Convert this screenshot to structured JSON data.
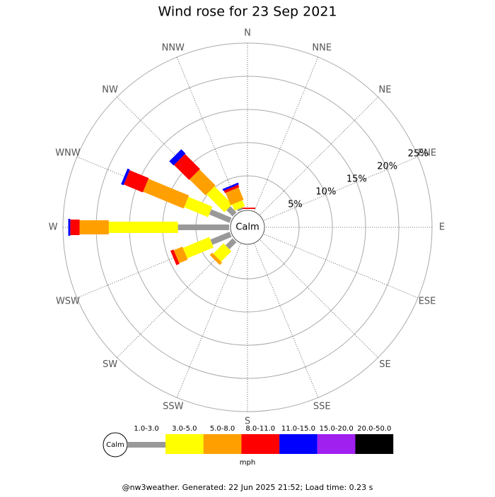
{
  "chart_data": {
    "type": "windrose",
    "title": "Wind rose for 23 Sep 2021",
    "categories": [
      "N",
      "NNE",
      "NE",
      "ENE",
      "E",
      "ESE",
      "SE",
      "SSE",
      "S",
      "SSW",
      "SW",
      "WSW",
      "W",
      "WNW",
      "NW",
      "NNW"
    ],
    "center_label": "Calm",
    "rlim": [
      0,
      25
    ],
    "rticks": [
      {
        "value": 5,
        "label": "5%"
      },
      {
        "value": 10,
        "label": "10%"
      },
      {
        "value": 15,
        "label": "15%"
      },
      {
        "value": 20,
        "label": "20%"
      },
      {
        "value": 25,
        "label": "25%"
      }
    ],
    "series": [
      {
        "name": "1.0-3.0",
        "color": "#999999",
        "values": [
          0,
          0,
          0,
          0,
          0,
          0,
          0,
          0,
          0,
          0,
          1.5,
          3.1,
          7.7,
          3.3,
          1.3,
          0.3
        ]
      },
      {
        "name": "3.0-5.0",
        "color": "#ffff00",
        "values": [
          0,
          0,
          0,
          0,
          0,
          0,
          0,
          0,
          0,
          0,
          2.2,
          4.3,
          10.4,
          3.9,
          3.8,
          1.0
        ]
      },
      {
        "name": "5.0-8.0",
        "color": "#ffa000",
        "values": [
          0,
          0,
          0,
          0,
          0,
          0,
          0,
          0,
          0,
          0,
          0.5,
          1.4,
          4.4,
          6.6,
          3.4,
          2.0
        ]
      },
      {
        "name": "8.0-11.0",
        "color": "#ff0000",
        "values": [
          0.2,
          0,
          0,
          0,
          0,
          0,
          0,
          0,
          0,
          0,
          0,
          0.5,
          1.4,
          3.1,
          3.2,
          0.4
        ]
      },
      {
        "name": "11.0-15.0",
        "color": "#0000ff",
        "values": [
          0,
          0,
          0,
          0,
          0,
          0,
          0,
          0,
          0,
          0,
          0,
          0,
          0.3,
          0.4,
          0.9,
          0.3
        ]
      },
      {
        "name": "15.0-20.0",
        "color": "#a020f0",
        "values": [
          0,
          0,
          0,
          0,
          0,
          0,
          0,
          0,
          0,
          0,
          0,
          0,
          0,
          0,
          0,
          0
        ]
      },
      {
        "name": "20.0-50.0",
        "color": "#000000",
        "values": [
          0,
          0,
          0,
          0,
          0,
          0,
          0,
          0,
          0,
          0,
          0,
          0,
          0,
          0,
          0,
          0
        ]
      }
    ],
    "legend_unit": "mph",
    "footer": "@nw3weather. Generated: 22 Jun 2025 21:52; Load time: 0.23 s"
  }
}
